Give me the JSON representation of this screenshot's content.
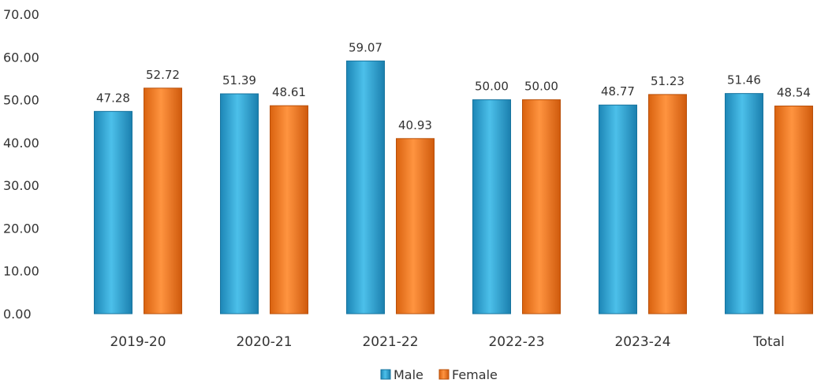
{
  "chart_data": {
    "type": "bar",
    "title": "",
    "xlabel": "",
    "ylabel": "",
    "categories": [
      "2019-20",
      "2020-21",
      "2021-22",
      "2022-23",
      "2023-24",
      "Total"
    ],
    "series": [
      {
        "name": "Male",
        "color": "#2aa6d6",
        "values": [
          47.28,
          51.39,
          59.07,
          50.0,
          48.77,
          51.46
        ],
        "labels": [
          "47.28",
          "51.39",
          "59.07",
          "50.00",
          "48.77",
          "51.46"
        ]
      },
      {
        "name": "Female",
        "color": "#f07a1e",
        "values": [
          52.72,
          48.61,
          40.93,
          50.0,
          51.23,
          48.54
        ],
        "labels": [
          "52.72",
          "48.61",
          "40.93",
          "50.00",
          "51.23",
          "48.54"
        ]
      }
    ],
    "ylim": [
      0,
      70
    ],
    "yticks": [
      "0.00",
      "10.00",
      "20.00",
      "30.00",
      "40.00",
      "50.00",
      "60.00",
      "70.00"
    ],
    "grid": false,
    "legend_position": "bottom-center"
  }
}
